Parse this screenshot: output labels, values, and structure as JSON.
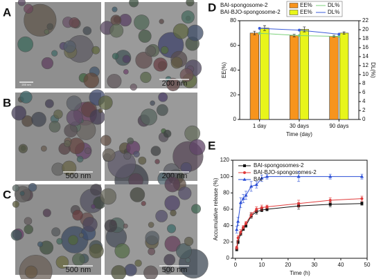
{
  "micrographs": [
    {
      "label": "A",
      "scale_bars": [
        "200 nm",
        "200 nm"
      ]
    },
    {
      "label": "B",
      "scale_bars": [
        "500 nm",
        "200 nm"
      ]
    },
    {
      "label": "C",
      "scale_bars": [
        "500 nm",
        "500 nm"
      ]
    }
  ],
  "chart_data": [
    {
      "type": "bar",
      "label": "D",
      "categories": [
        "1 day",
        "30 days",
        "90 days"
      ],
      "x_label": "Time (day)",
      "y_label": "EE(%)",
      "y2_label": "DL(%)",
      "ylim": [
        0,
        80
      ],
      "yticks": [
        0,
        20,
        40,
        60,
        80
      ],
      "y2lim": [
        0,
        22
      ],
      "y2ticks": [
        0,
        2,
        4,
        6,
        8,
        10,
        12,
        14,
        16,
        18,
        20,
        22
      ],
      "series": [
        {
          "name": "EE%",
          "group": "BAI-spongosome-2",
          "kind": "bar",
          "color": "#f7941d",
          "values": [
            70,
            68,
            67.5
          ],
          "errors": [
            1.5,
            1,
            0.8
          ]
        },
        {
          "name": "EE%",
          "group": "BAI-BJO-spongosome-2",
          "kind": "bar",
          "color": "#e8f51a",
          "values": [
            74,
            73,
            70
          ],
          "errors": [
            2,
            2,
            1
          ]
        },
        {
          "name": "DL%",
          "group": "BAI-spongosome-2",
          "kind": "line",
          "axis": "y2",
          "color": "#7bd17b",
          "values": [
            19.2,
            18.7,
            18.5
          ]
        },
        {
          "name": "DL%",
          "group": "BAI-BJO-spongosome-2",
          "kind": "line",
          "axis": "y2",
          "color": "#3a5bd9",
          "values": [
            20.3,
            19.9,
            19.0
          ]
        }
      ]
    },
    {
      "type": "line",
      "label": "E",
      "x_label": "Time (h)",
      "y_label": "Accumulative release (%)",
      "x": [
        0.5,
        1,
        2,
        3,
        4,
        6,
        8,
        10,
        12,
        24,
        36,
        48
      ],
      "xlim": [
        -1,
        50
      ],
      "xticks": [
        0,
        10,
        20,
        30,
        40,
        50
      ],
      "ylim": [
        0,
        120
      ],
      "yticks": [
        0,
        20,
        40,
        60,
        80,
        100,
        120
      ],
      "series": [
        {
          "name": "BAI-spongosomes-2",
          "color": "#111111",
          "marker": "square",
          "values": [
            11,
            20,
            30,
            36,
            40,
            52,
            57,
            59,
            60,
            64,
            66,
            67
          ],
          "errors": [
            2,
            2,
            2,
            2,
            2,
            3,
            3,
            2,
            2,
            4,
            3,
            2
          ]
        },
        {
          "name": "BAI-BJO-spongosomes-2",
          "color": "#e03a3a",
          "marker": "circle",
          "values": [
            13,
            25,
            32,
            38,
            43,
            53,
            60,
            62,
            63,
            67,
            71,
            73
          ],
          "errors": [
            2,
            3,
            3,
            2,
            2,
            3,
            3,
            3,
            2,
            4,
            3,
            3
          ]
        },
        {
          "name": "BAI",
          "color": "#2b4fd6",
          "marker": "triangle",
          "values": [
            35,
            45,
            68,
            73,
            77,
            88,
            90,
            98,
            100,
            100,
            100,
            100
          ],
          "errors": [
            4,
            5,
            6,
            5,
            5,
            6,
            4,
            4,
            3,
            6,
            3,
            3
          ]
        }
      ]
    }
  ]
}
